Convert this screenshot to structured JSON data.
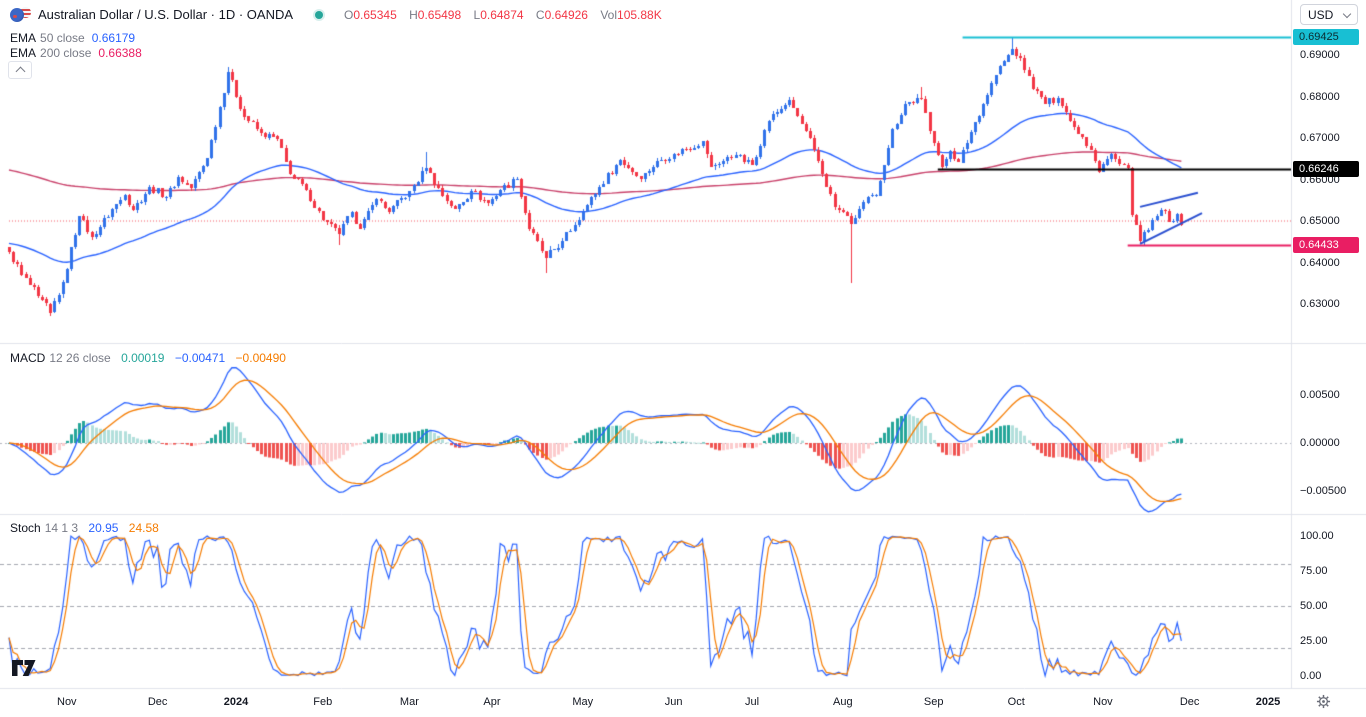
{
  "header": {
    "title": "Australian Dollar / U.S. Dollar · 1D · OANDA",
    "ohlc": {
      "o_label": "O",
      "o": "0.65345",
      "h_label": "H",
      "h": "0.65498",
      "l_label": "L",
      "l": "0.64874",
      "c_label": "C",
      "c": "0.64926",
      "vol_label": "Vol",
      "vol": "105.88K"
    },
    "ema50": {
      "name": "EMA",
      "params": "50 close",
      "value": "0.66179"
    },
    "ema200": {
      "name": "EMA",
      "params": "200 close",
      "value": "0.66388"
    }
  },
  "macd_header": {
    "name": "MACD",
    "params": "12 26 close",
    "hist": "0.00019",
    "macd": "−0.00471",
    "signal": "−0.00490"
  },
  "stoch_header": {
    "name": "Stoch",
    "params": "14 1 3",
    "k": "20.95",
    "d": "24.58"
  },
  "currency_selector": {
    "label": "USD"
  },
  "price_tags": [
    {
      "text": "0.69425",
      "price": 0.69425,
      "bg": "#18bfd3",
      "fg": "#0b2c31"
    },
    {
      "text": "0.66246",
      "price": 0.66246,
      "bg": "#000000",
      "fg": "#ffffff"
    },
    {
      "text": "0.64433",
      "price": 0.64433,
      "bg": "#e91e63",
      "fg": "#ffffff"
    }
  ],
  "chart_data": {
    "type": "candlestick",
    "symbol": "AUD/USD",
    "timeframe": "1D",
    "exchange": "OANDA",
    "title": "Australian Dollar / U.S. Dollar, 1D, OANDA",
    "last_ohlc": {
      "open": 0.65345,
      "high": 0.65498,
      "low": 0.64874,
      "close": 0.64926,
      "volume": "105.88K"
    },
    "candle_count": 285,
    "close_anchors": [
      [
        0,
        0.6425
      ],
      [
        3,
        0.6372
      ],
      [
        7,
        0.6318
      ],
      [
        10,
        0.628
      ],
      [
        13,
        0.6352
      ],
      [
        17,
        0.6512
      ],
      [
        20,
        0.6462
      ],
      [
        25,
        0.6528
      ],
      [
        28,
        0.6562
      ],
      [
        30,
        0.6528
      ],
      [
        34,
        0.6582
      ],
      [
        38,
        0.6558
      ],
      [
        41,
        0.6605
      ],
      [
        44,
        0.6578
      ],
      [
        48,
        0.6652
      ],
      [
        53,
        0.6858
      ],
      [
        57,
        0.6752
      ],
      [
        61,
        0.6712
      ],
      [
        65,
        0.6698
      ],
      [
        68,
        0.6612
      ],
      [
        72,
        0.6575
      ],
      [
        76,
        0.6502
      ],
      [
        80,
        0.6468
      ],
      [
        83,
        0.6522
      ],
      [
        85,
        0.6482
      ],
      [
        89,
        0.6552
      ],
      [
        92,
        0.6522
      ],
      [
        97,
        0.6572
      ],
      [
        101,
        0.6628
      ],
      [
        105,
        0.6562
      ],
      [
        108,
        0.6528
      ],
      [
        112,
        0.6572
      ],
      [
        116,
        0.6542
      ],
      [
        119,
        0.6575
      ],
      [
        123,
        0.6602
      ],
      [
        126,
        0.648
      ],
      [
        130,
        0.6412
      ],
      [
        134,
        0.6452
      ],
      [
        139,
        0.6522
      ],
      [
        143,
        0.6582
      ],
      [
        148,
        0.6648
      ],
      [
        153,
        0.6602
      ],
      [
        157,
        0.6645
      ],
      [
        161,
        0.6662
      ],
      [
        168,
        0.6692
      ],
      [
        170,
        0.6632
      ],
      [
        176,
        0.6658
      ],
      [
        180,
        0.6635
      ],
      [
        184,
        0.6742
      ],
      [
        189,
        0.6792
      ],
      [
        195,
        0.6672
      ],
      [
        200,
        0.6532
      ],
      [
        203,
        0.6512
      ],
      [
        204,
        0.6492
      ],
      [
        207,
        0.6545
      ],
      [
        210,
        0.6562
      ],
      [
        214,
        0.6722
      ],
      [
        217,
        0.6782
      ],
      [
        221,
        0.6795
      ],
      [
        224,
        0.6688
      ],
      [
        226,
        0.6632
      ],
      [
        228,
        0.6668
      ],
      [
        230,
        0.6642
      ],
      [
        234,
        0.6738
      ],
      [
        239,
        0.6852
      ],
      [
        243,
        0.6915
      ],
      [
        245,
        0.6892
      ],
      [
        248,
        0.6818
      ],
      [
        251,
        0.6782
      ],
      [
        254,
        0.6796
      ],
      [
        257,
        0.6742
      ],
      [
        260,
        0.6702
      ],
      [
        262,
        0.6672
      ],
      [
        264,
        0.6618
      ],
      [
        267,
        0.6662
      ],
      [
        269,
        0.6638
      ],
      [
        271,
        0.6628
      ],
      [
        272,
        0.6515
      ],
      [
        274,
        0.6452
      ],
      [
        276,
        0.6478
      ],
      [
        278,
        0.6512
      ],
      [
        280,
        0.6525
      ],
      [
        281,
        0.6498
      ],
      [
        283,
        0.6518
      ],
      [
        284,
        0.64926
      ]
    ],
    "wick_overrides": [
      {
        "i": 10,
        "low": 0.6271
      },
      {
        "i": 53,
        "high": 0.6871
      },
      {
        "i": 80,
        "low": 0.6443
      },
      {
        "i": 101,
        "high": 0.6667
      },
      {
        "i": 130,
        "low": 0.6375
      },
      {
        "i": 189,
        "high": 0.6799
      },
      {
        "i": 204,
        "low": 0.6351
      },
      {
        "i": 221,
        "high": 0.6824
      },
      {
        "i": 226,
        "low": 0.66246
      },
      {
        "i": 243,
        "high": 0.69425
      },
      {
        "i": 274,
        "low": 0.64433
      }
    ],
    "noise_amp": 0.0009,
    "wick_amp": 0.0008,
    "ema_seeds": {
      "ema50": 0.6447,
      "ema200": 0.6625
    },
    "indicators": {
      "ema_lengths": [
        50,
        200
      ],
      "ema50_value": 0.66179,
      "ema200_value": 0.66388,
      "macd_params": [
        12,
        26,
        9
      ],
      "macd_value": -0.00471,
      "signal_value": -0.0049,
      "hist_value": 0.00019,
      "stoch_params": [
        14,
        1,
        3
      ],
      "stoch_k": 20.95,
      "stoch_d": 24.58
    },
    "levels": [
      {
        "price": 0.65,
        "from_i": 0,
        "style": "dotted",
        "color": "#f23645",
        "width": 1
      },
      {
        "price": 0.69425,
        "from_i": 231,
        "style": "solid",
        "color": "#18bfd3",
        "width": 2
      },
      {
        "price": 0.66246,
        "from_i": 225,
        "style": "solid",
        "color": "#000000",
        "width": 2
      },
      {
        "price": 0.64433,
        "from_i": 271,
        "style": "solid",
        "color": "#e91e63",
        "width": 2
      }
    ],
    "trendlines": [
      {
        "i1": 274,
        "p1": 0.6534,
        "i2": 288,
        "p2": 0.6568,
        "color": "#2a4fd0",
        "width": 2
      },
      {
        "i1": 274,
        "p1": 0.6445,
        "i2": 289,
        "p2": 0.6519,
        "color": "#2a4fd0",
        "width": 2
      }
    ],
    "stoch_bands": [
      80,
      50,
      20
    ],
    "y_axis": {
      "main": [
        {
          "label": "0.69000",
          "price": 0.69
        },
        {
          "label": "0.68000",
          "price": 0.68
        },
        {
          "label": "0.67000",
          "price": 0.67
        },
        {
          "label": "0.66000",
          "price": 0.66
        },
        {
          "label": "0.65000",
          "price": 0.65
        },
        {
          "label": "0.64000",
          "price": 0.64
        },
        {
          "label": "0.63000",
          "price": 0.63
        }
      ],
      "macd": [
        {
          "label": "0.00500",
          "value": 0.005
        },
        {
          "label": "0.00000",
          "value": 0
        },
        {
          "label": "−0.00500",
          "value": -0.005
        }
      ],
      "stoch": [
        {
          "label": "100.00",
          "value": 100
        },
        {
          "label": "75.00",
          "value": 75
        },
        {
          "label": "50.00",
          "value": 50
        },
        {
          "label": "25.00",
          "value": 25
        },
        {
          "label": "0.00",
          "value": 0
        }
      ]
    },
    "months": [
      {
        "label": "Nov",
        "i": 14
      },
      {
        "label": "Dec",
        "i": 36
      },
      {
        "label": "2024",
        "i": 55,
        "bold": true
      },
      {
        "label": "Feb",
        "i": 76
      },
      {
        "label": "Mar",
        "i": 97
      },
      {
        "label": "Apr",
        "i": 117
      },
      {
        "label": "May",
        "i": 139
      },
      {
        "label": "Jun",
        "i": 161
      },
      {
        "label": "Jul",
        "i": 180
      },
      {
        "label": "Aug",
        "i": 202
      },
      {
        "label": "Sep",
        "i": 224
      },
      {
        "label": "Oct",
        "i": 244
      },
      {
        "label": "Nov",
        "i": 265
      },
      {
        "label": "Dec",
        "i": 286
      },
      {
        "label": "2025",
        "i": 305,
        "bold": true
      }
    ],
    "colors": {
      "up": "#3172ea",
      "down": "#f23645",
      "ema50": "#2962ff",
      "ema200": "#c9426b",
      "macd": "#2962ff",
      "signal": "#f57c00",
      "hist_up": "#26a69a",
      "hist_up_weak": "#b2dfdb",
      "hist_dn": "#ef5350",
      "hist_dn_weak": "#fccbcd",
      "stoch_k": "#2962ff",
      "stoch_d": "#f57c00",
      "separator": "#e0e3eb",
      "zero_dash": "#b2b5be",
      "band_dash": "#a3a6af"
    }
  }
}
